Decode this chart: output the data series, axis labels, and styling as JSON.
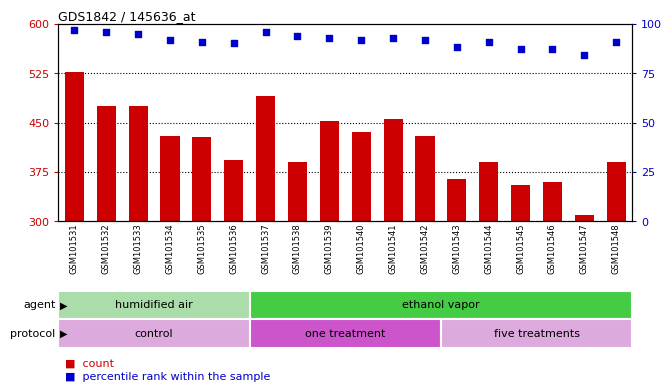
{
  "title": "GDS1842 / 145636_at",
  "samples": [
    "GSM101531",
    "GSM101532",
    "GSM101533",
    "GSM101534",
    "GSM101535",
    "GSM101536",
    "GSM101537",
    "GSM101538",
    "GSM101539",
    "GSM101540",
    "GSM101541",
    "GSM101542",
    "GSM101543",
    "GSM101544",
    "GSM101545",
    "GSM101546",
    "GSM101547",
    "GSM101548"
  ],
  "counts": [
    527,
    475,
    475,
    430,
    428,
    393,
    490,
    390,
    452,
    435,
    455,
    430,
    365,
    390,
    355,
    360,
    310,
    390
  ],
  "percentiles": [
    97,
    96,
    95,
    92,
    91,
    90,
    96,
    94,
    93,
    92,
    93,
    92,
    88,
    91,
    87,
    87,
    84,
    91
  ],
  "ylim_left": [
    300,
    600
  ],
  "ylim_right": [
    0,
    100
  ],
  "yticks_left": [
    300,
    375,
    450,
    525,
    600
  ],
  "yticks_right": [
    0,
    25,
    50,
    75,
    100
  ],
  "bar_color": "#cc0000",
  "dot_color": "#0000cc",
  "bar_base": 300,
  "agent_groups": [
    {
      "label": "humidified air",
      "start": 0,
      "end": 6,
      "color": "#aaddaa"
    },
    {
      "label": "ethanol vapor",
      "start": 6,
      "end": 18,
      "color": "#44cc44"
    }
  ],
  "protocol_groups": [
    {
      "label": "control",
      "start": 0,
      "end": 6,
      "color": "#ddaadd"
    },
    {
      "label": "one treatment",
      "start": 6,
      "end": 12,
      "color": "#cc55cc"
    },
    {
      "label": "five treatments",
      "start": 12,
      "end": 18,
      "color": "#ddaadd"
    }
  ],
  "bg_color": "#ffffff",
  "plot_bg_color": "#ffffff",
  "hline_color": "#000000",
  "hline_locs": [
    375,
    450,
    525
  ],
  "box_edge_color": "#000000"
}
